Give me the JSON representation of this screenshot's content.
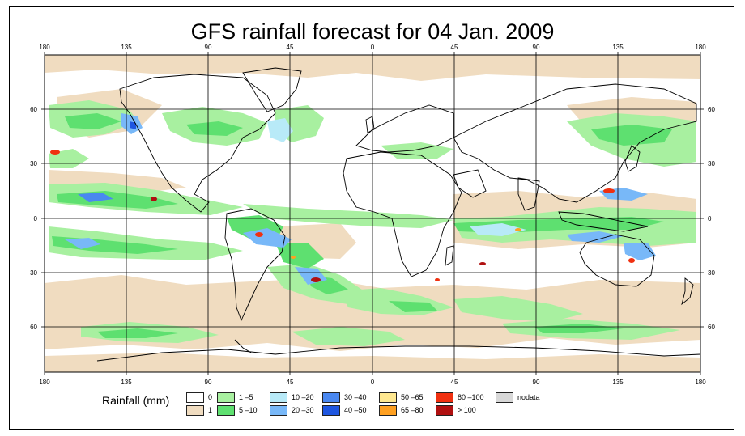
{
  "title": "GFS rainfall forecast for 04 Jan. 2009",
  "axes": {
    "top_lon_labels": [
      "180",
      "135",
      "90",
      "45",
      "0",
      "45",
      "90",
      "135",
      "180"
    ],
    "bottom_lon_labels": [
      "180",
      "135",
      "90",
      "45",
      "0",
      "45",
      "90",
      "135",
      "180"
    ],
    "left_lat_labels": [
      "60",
      "30",
      "0",
      "30",
      "60"
    ],
    "right_lat_labels": [
      "60",
      "30",
      "0",
      "30",
      "60"
    ]
  },
  "legend": {
    "title": "Rainfall (mm)",
    "items": [
      {
        "label": "0",
        "color": "#ffffff"
      },
      {
        "label": "1",
        "color": "#f0dcc0"
      },
      {
        "label": "1 –5",
        "color": "#a8f0a0"
      },
      {
        "label": "5 –10",
        "color": "#5ee070"
      },
      {
        "label": "10 –20",
        "color": "#b8eaf8"
      },
      {
        "label": "20 –30",
        "color": "#78b8f8"
      },
      {
        "label": "30 –40",
        "color": "#4a88f0"
      },
      {
        "label": "40 –50",
        "color": "#1e56e0"
      },
      {
        "label": "50 –65",
        "color": "#ffe890"
      },
      {
        "label": "65 –80",
        "color": "#ffa020"
      },
      {
        "label": "80 –100",
        "color": "#f03010"
      },
      {
        "label": "> 100",
        "color": "#b01010"
      },
      {
        "label": "nodata",
        "color": "#d8d8d8"
      }
    ]
  },
  "colors": {
    "tan": "#f0dcc0",
    "light_green": "#a8f0a0",
    "green": "#5ee070",
    "light_blue": "#b8eaf8",
    "blue": "#78b8f8",
    "deep_blue": "#1e56e0",
    "red": "#f03010",
    "dark_red": "#b01010",
    "orange": "#ffa020"
  }
}
